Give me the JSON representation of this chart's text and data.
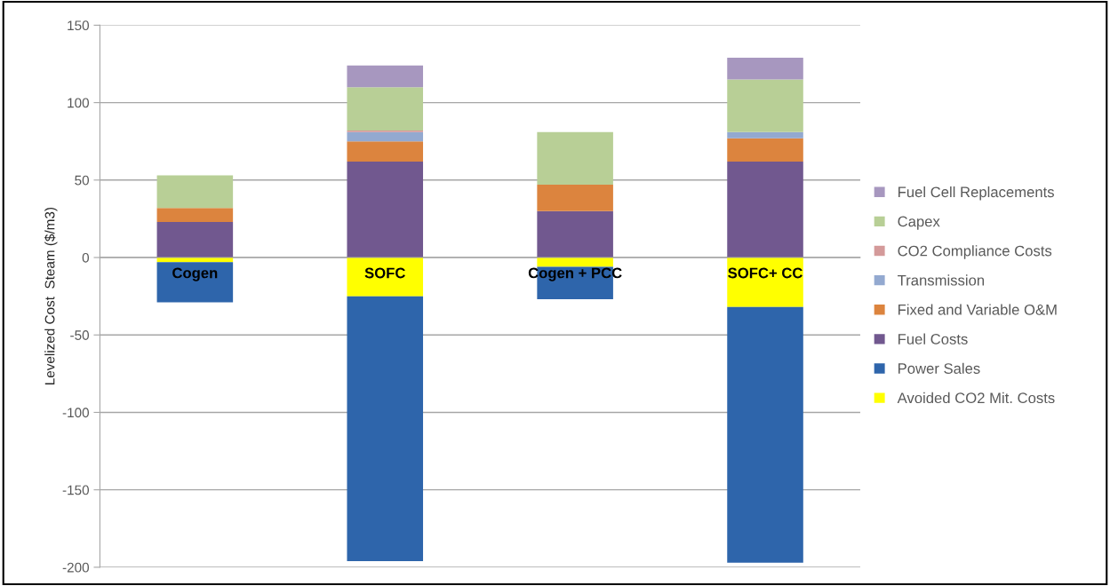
{
  "chart_data": {
    "type": "bar",
    "stacked": true,
    "ylabel": "Levelized Cost  Steam ($/m3)",
    "categories": [
      "Cogen",
      "SOFC",
      "Cogen + PCC",
      "SOFC+ CC"
    ],
    "series": [
      {
        "name": "Avoided CO2 Mit. Costs",
        "color": "#ffff00",
        "values": [
          -3,
          -25,
          -6,
          -32
        ]
      },
      {
        "name": "Power Sales",
        "color": "#2e65ab",
        "values": [
          -26,
          -171,
          -21,
          -165
        ]
      },
      {
        "name": "Fuel Costs",
        "color": "#71588f",
        "values": [
          23,
          62,
          30,
          62
        ]
      },
      {
        "name": "Fixed and Variable O&M",
        "color": "#dc843e",
        "values": [
          9,
          13,
          17,
          15
        ]
      },
      {
        "name": "Transmission",
        "color": "#93a9d0",
        "values": [
          null,
          6,
          null,
          4
        ]
      },
      {
        "name": "CO2 Compliance Costs",
        "color": "#d49a9a",
        "values": [
          null,
          1,
          null,
          null
        ]
      },
      {
        "name": "Capex",
        "color": "#b8cf96",
        "values": [
          21,
          28,
          34,
          34
        ]
      },
      {
        "name": "Fuel Cell Replacements",
        "color": "#a797bf",
        "values": [
          null,
          14,
          null,
          14
        ]
      }
    ],
    "ylim": [
      -200,
      150
    ],
    "yticks": [
      -200,
      -150,
      -100,
      -50,
      0,
      50,
      100,
      150
    ],
    "grid": "y",
    "legend": "right"
  }
}
